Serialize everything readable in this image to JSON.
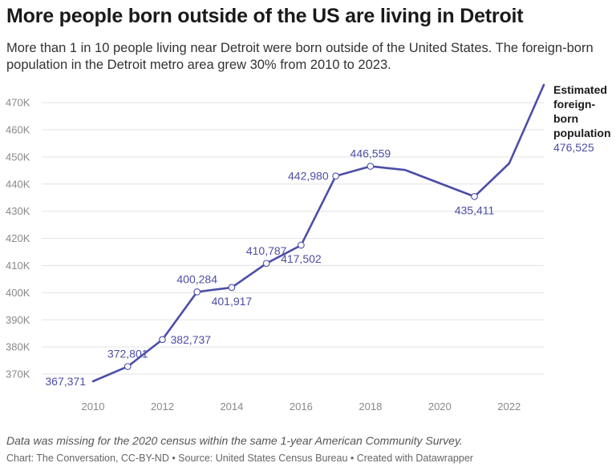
{
  "title": "More people born outside of the US are living in Detroit",
  "subtitle": "More than 1 in 10 people living near Detroit were born outside of the United States. The foreign-born population in the Detroit metro area grew 30% from 2010 to 2023.",
  "note": "Data was missing for the 2020 census within the same 1-year American Community Survey.",
  "footer": "Chart: The Conversation, CC-BY-ND • Source: United States Census Bureau • Created with Datawrapper",
  "colors": {
    "line": "#4b4ea6",
    "grid": "#e3e3e3",
    "tick": "#888888"
  },
  "chart_data": {
    "type": "line",
    "title": "More people born outside of the US are living in Detroit",
    "xlabel": "",
    "ylabel": "",
    "xlim": [
      2010,
      2023
    ],
    "ylim": [
      365000,
      478000
    ],
    "grid": "horizontal",
    "x_ticks": [
      2010,
      2012,
      2014,
      2016,
      2018,
      2020,
      2022
    ],
    "x_tick_labels": [
      "2010",
      "2012",
      "2014",
      "2016",
      "2018",
      "2020",
      "2022"
    ],
    "y_ticks": [
      370000,
      380000,
      390000,
      400000,
      410000,
      420000,
      430000,
      440000,
      450000,
      460000,
      470000
    ],
    "y_tick_labels": [
      "370K",
      "380K",
      "390K",
      "400K",
      "410K",
      "420K",
      "430K",
      "440K",
      "450K",
      "460K",
      "470K"
    ],
    "series": [
      {
        "name": "Estimated foreign-born population",
        "x": [
          2010,
          2011,
          2012,
          2013,
          2014,
          2015,
          2016,
          2017,
          2018,
          2019,
          2021,
          2022,
          2023
        ],
        "values": [
          367371,
          372801,
          382737,
          400284,
          401917,
          410787,
          417502,
          442980,
          446559,
          445200,
          435411,
          447600,
          476525
        ]
      }
    ],
    "data_labels": [
      {
        "x": 2010,
        "text": "367,371",
        "pos": "left"
      },
      {
        "x": 2011,
        "text": "372,801",
        "pos": "above"
      },
      {
        "x": 2012,
        "text": "382,737",
        "pos": "right"
      },
      {
        "x": 2013,
        "text": "400,284",
        "pos": "above"
      },
      {
        "x": 2014,
        "text": "401,917",
        "pos": "below"
      },
      {
        "x": 2015,
        "text": "410,787",
        "pos": "above"
      },
      {
        "x": 2016,
        "text": "417,502",
        "pos": "below"
      },
      {
        "x": 2017,
        "text": "442,980",
        "pos": "left"
      },
      {
        "x": 2018,
        "text": "446,559",
        "pos": "above"
      },
      {
        "x": 2021,
        "text": "435,411",
        "pos": "below"
      }
    ],
    "end_label": {
      "lines": [
        "Estimated",
        "foreign-",
        "born",
        "population"
      ],
      "value": "476,525"
    }
  }
}
